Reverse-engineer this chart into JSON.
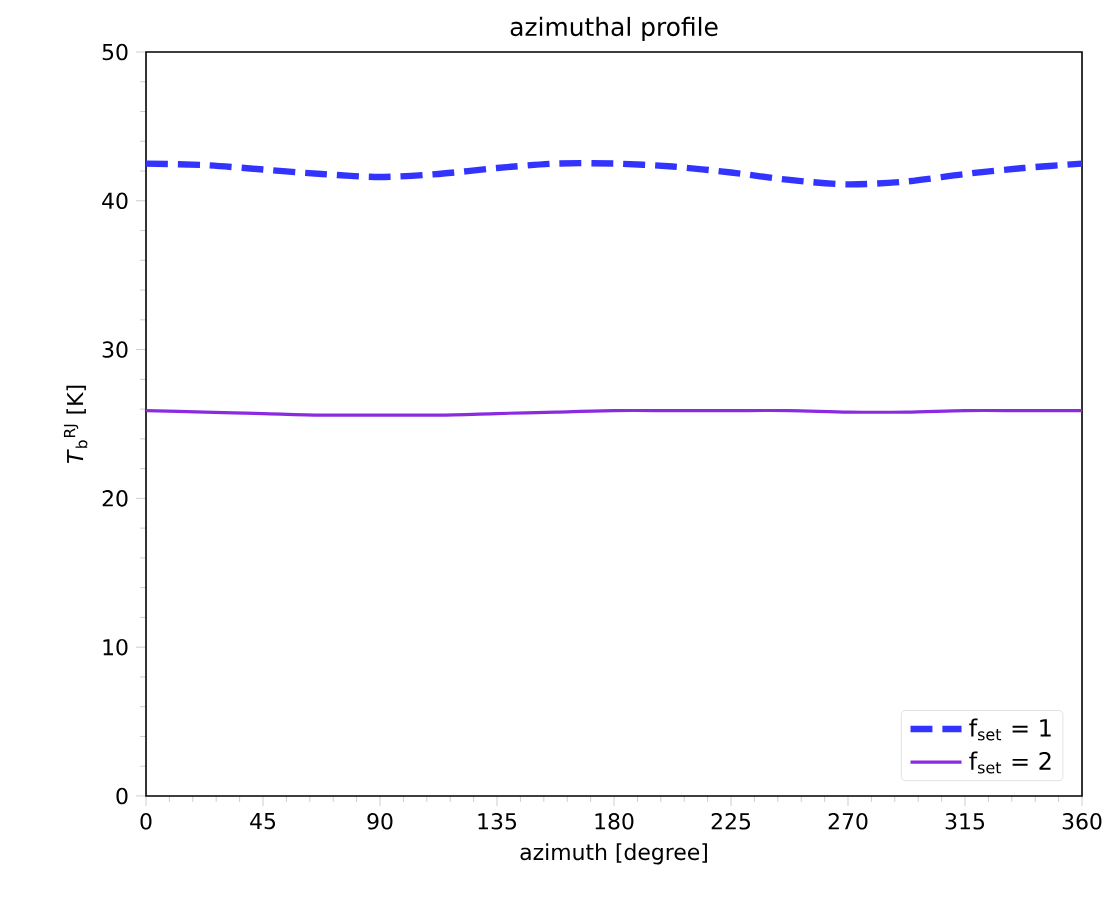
{
  "chart_data": {
    "type": "line",
    "title": "azimuthal profile",
    "xlabel": "azimuth [degree]",
    "ylabel": "*T*$_{b}$$^{RJ}$ [K]",
    "x": [
      0,
      22.5,
      45,
      67.5,
      90,
      112.5,
      135,
      157.5,
      180,
      202.5,
      225,
      247.5,
      270,
      292.5,
      315,
      337.5,
      360
    ],
    "series": [
      {
        "name": "f$_{set}$ = 1",
        "color": "#3333ff",
        "line_style": "dashed",
        "values": [
          42.5,
          42.4,
          42.1,
          41.8,
          41.6,
          41.8,
          42.2,
          42.5,
          42.5,
          42.3,
          41.9,
          41.4,
          41.1,
          41.3,
          41.8,
          42.2,
          42.5
        ]
      },
      {
        "name": "f$_{set}$ = 2",
        "color": "#8a2be2",
        "line_style": "solid",
        "values": [
          25.9,
          25.8,
          25.7,
          25.6,
          25.6,
          25.6,
          25.7,
          25.8,
          25.9,
          25.9,
          25.9,
          25.9,
          25.8,
          25.8,
          25.9,
          25.9,
          25.9
        ]
      }
    ],
    "xlim": [
      0,
      360
    ],
    "ylim": [
      0,
      50
    ],
    "xticks": [
      0,
      45,
      90,
      135,
      180,
      225,
      270,
      315,
      360
    ],
    "yticks": [
      0,
      10,
      20,
      30,
      40,
      50
    ],
    "legend": "bottom right",
    "grid": false
  }
}
